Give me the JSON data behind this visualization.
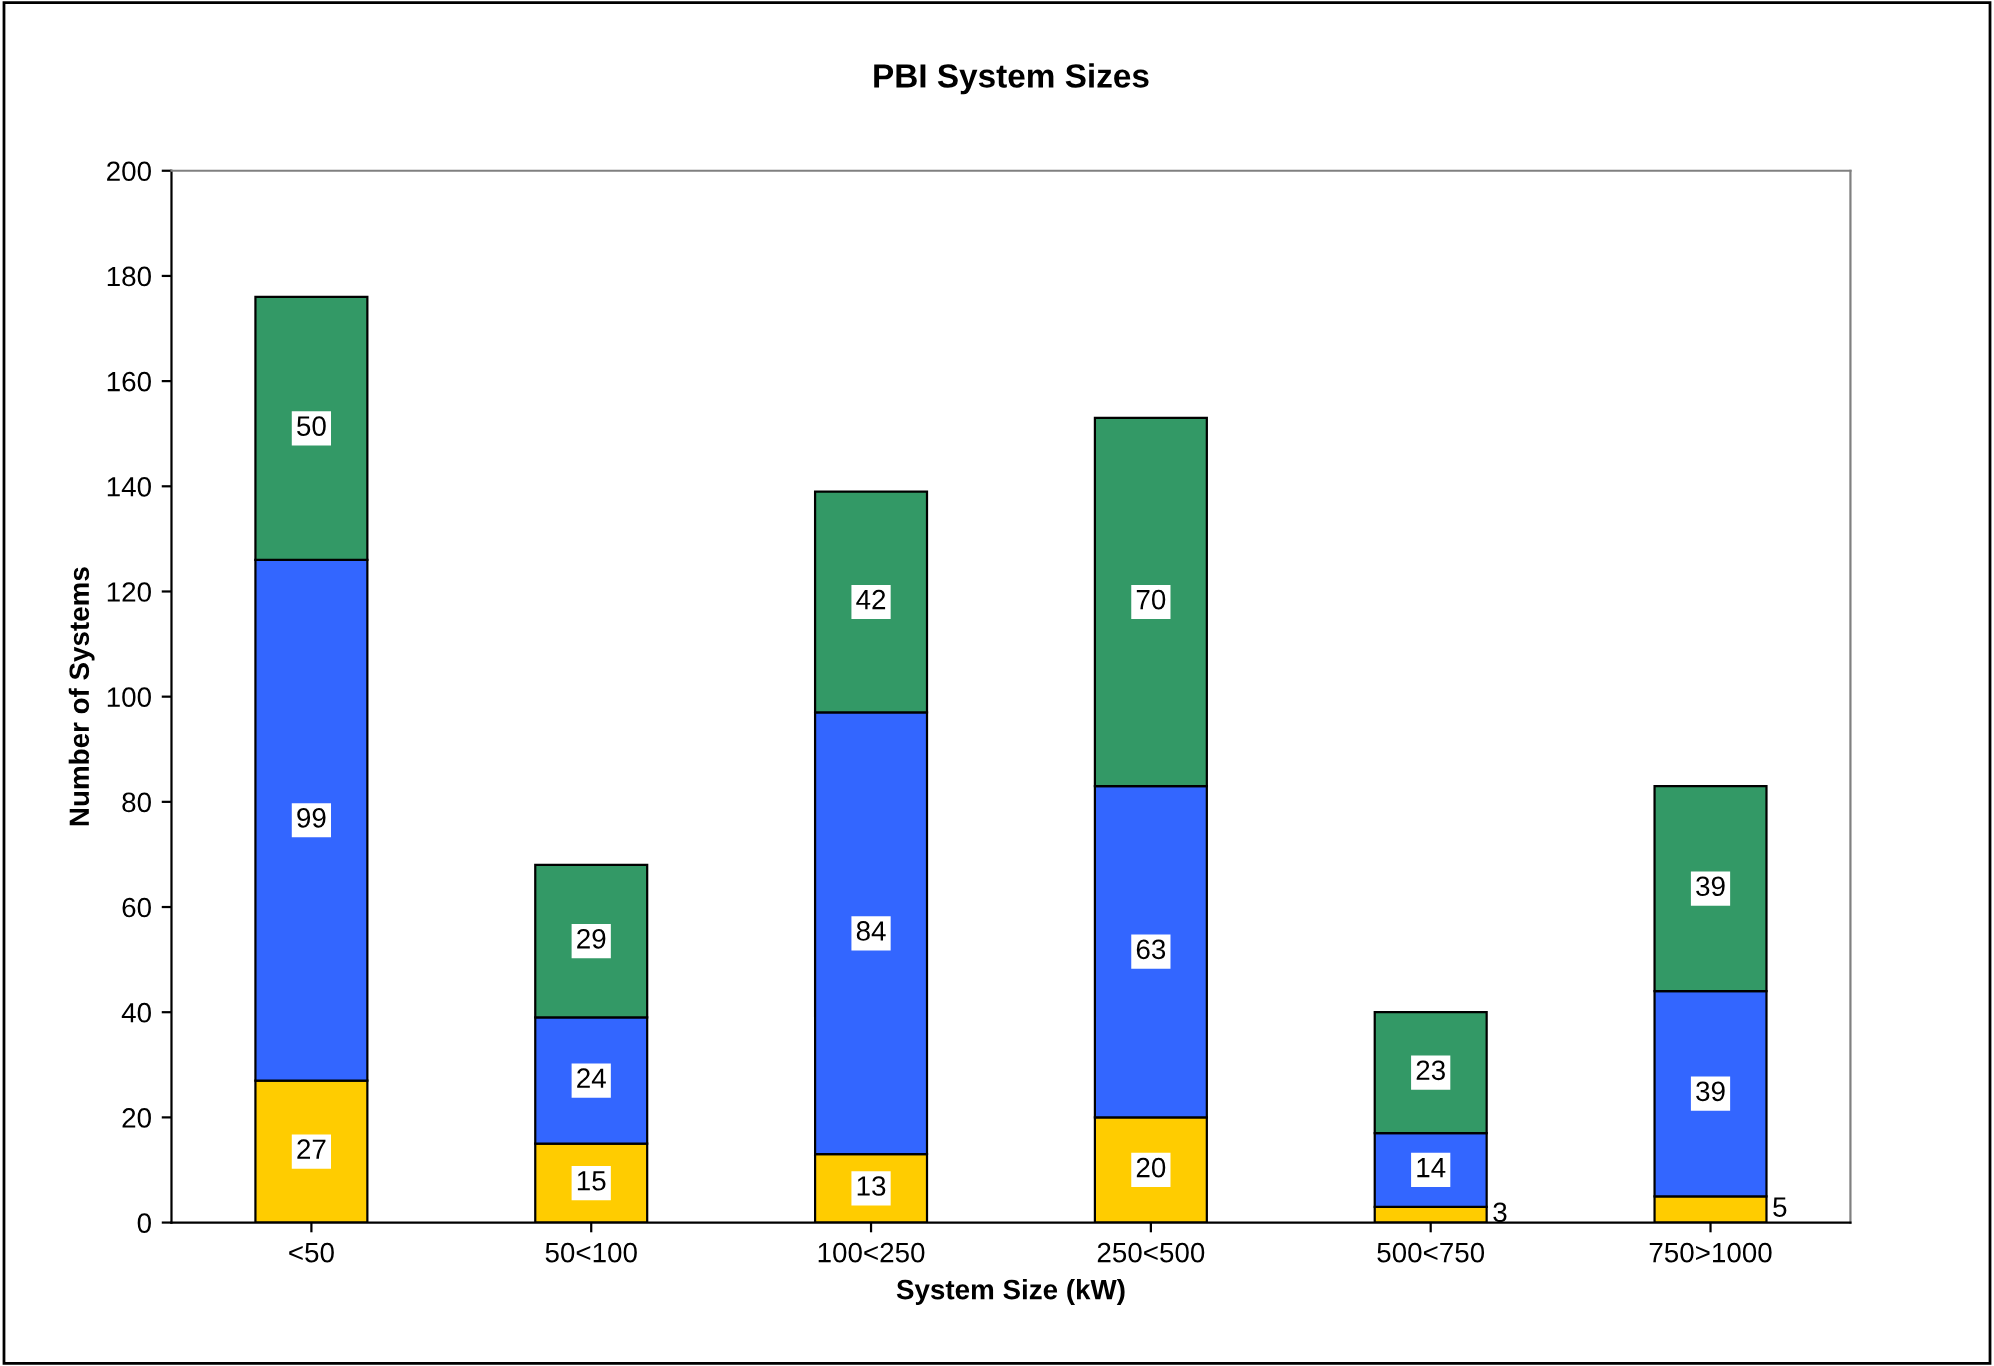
{
  "chart_data": {
    "type": "bar",
    "title": "PBI System Sizes",
    "xlabel": "System Size (kW)",
    "ylabel": "Number of Systems",
    "categories": [
      "<50",
      "50<100",
      "100<250",
      "250<500",
      "500<750",
      "750>1000"
    ],
    "stacked": true,
    "data_labels": true,
    "ylim": [
      0,
      200
    ],
    "yticks": [
      0,
      20,
      40,
      60,
      80,
      100,
      120,
      140,
      160,
      180,
      200
    ],
    "grid": false,
    "series": [
      {
        "color": "#ffcc00",
        "values": [
          27,
          15,
          13,
          20,
          3,
          5
        ]
      },
      {
        "color": "#3366ff",
        "values": [
          99,
          24,
          84,
          63,
          14,
          39
        ]
      },
      {
        "color": "#339966",
        "values": [
          50,
          29,
          42,
          70,
          23,
          39
        ]
      }
    ]
  }
}
